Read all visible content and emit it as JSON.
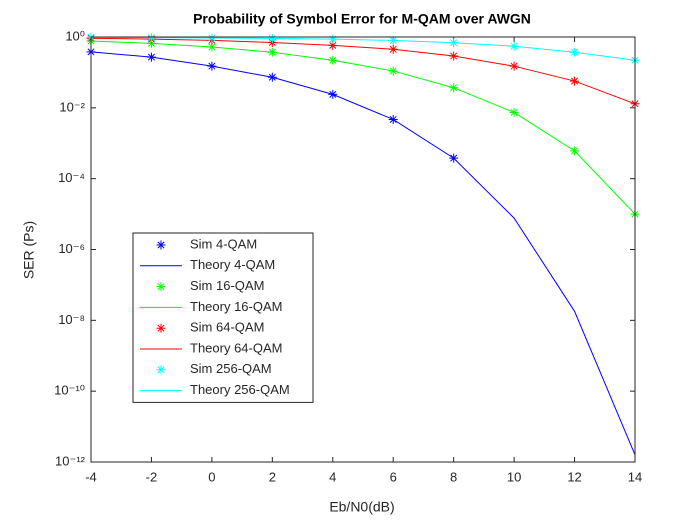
{
  "chart_data": {
    "type": "line",
    "title": "Probability of Symbol Error for M-QAM over AWGN",
    "xlabel": "Eb/N0(dB)",
    "ylabel": "SER (Ps)",
    "x": [
      -4,
      -2,
      0,
      2,
      4,
      6,
      8,
      10,
      12,
      14
    ],
    "xlim": [
      -4,
      14
    ],
    "xticks": [
      -4,
      -2,
      0,
      2,
      4,
      6,
      8,
      10,
      12,
      14
    ],
    "yscale": "log",
    "ylim": [
      1e-12,
      1
    ],
    "yticks": [
      {
        "value": 1e-12,
        "label": "10⁻¹²"
      },
      {
        "value": 1e-10,
        "label": "10⁻¹⁰"
      },
      {
        "value": 1e-08,
        "label": "10⁻⁸"
      },
      {
        "value": 1e-06,
        "label": "10⁻⁶"
      },
      {
        "value": 0.0001,
        "label": "10⁻⁴"
      },
      {
        "value": 0.01,
        "label": "10⁻²"
      },
      {
        "value": 1,
        "label": "10⁰"
      }
    ],
    "legend": "lower left",
    "series": [
      {
        "name": "Sim 4-QAM",
        "style": "marker",
        "color": "#0000ff",
        "values": [
          0.38,
          0.27,
          0.15,
          0.073,
          0.024,
          0.0047,
          0.00038,
          null,
          null,
          null
        ]
      },
      {
        "name": "Theory 4-QAM",
        "style": "line",
        "color": "#0000ff",
        "values": [
          0.38,
          0.27,
          0.15,
          0.073,
          0.024,
          0.0047,
          0.00038,
          7.7e-06,
          1.8e-08,
          1.6e-12
        ]
      },
      {
        "name": "Sim 16-QAM",
        "style": "marker",
        "color": "#00ff00",
        "values": [
          0.77,
          0.66,
          0.52,
          0.37,
          0.22,
          0.11,
          0.037,
          0.0074,
          0.00061,
          1e-05
        ]
      },
      {
        "name": "Theory 16-QAM",
        "style": "line",
        "color": "#00ff00",
        "values": [
          0.77,
          0.66,
          0.52,
          0.37,
          0.22,
          0.11,
          0.037,
          0.0074,
          0.00061,
          1e-05
        ]
      },
      {
        "name": "Sim 64-QAM",
        "style": "marker",
        "color": "#ff0000",
        "values": [
          0.92,
          0.87,
          0.8,
          0.7,
          0.58,
          0.45,
          0.29,
          0.15,
          0.057,
          0.013
        ]
      },
      {
        "name": "Theory 64-QAM",
        "style": "line",
        "color": "#ff0000",
        "values": [
          0.92,
          0.87,
          0.8,
          0.7,
          0.58,
          0.45,
          0.29,
          0.15,
          0.057,
          0.013
        ]
      },
      {
        "name": "Sim 256-QAM",
        "style": "marker",
        "color": "#00ffff",
        "values": [
          0.98,
          0.96,
          0.94,
          0.91,
          0.87,
          0.8,
          0.69,
          0.55,
          0.37,
          0.22
        ]
      },
      {
        "name": "Theory 256-QAM",
        "style": "line",
        "color": "#00ffff",
        "values": [
          0.98,
          0.96,
          0.94,
          0.91,
          0.87,
          0.8,
          0.69,
          0.55,
          0.37,
          0.22
        ]
      }
    ]
  }
}
